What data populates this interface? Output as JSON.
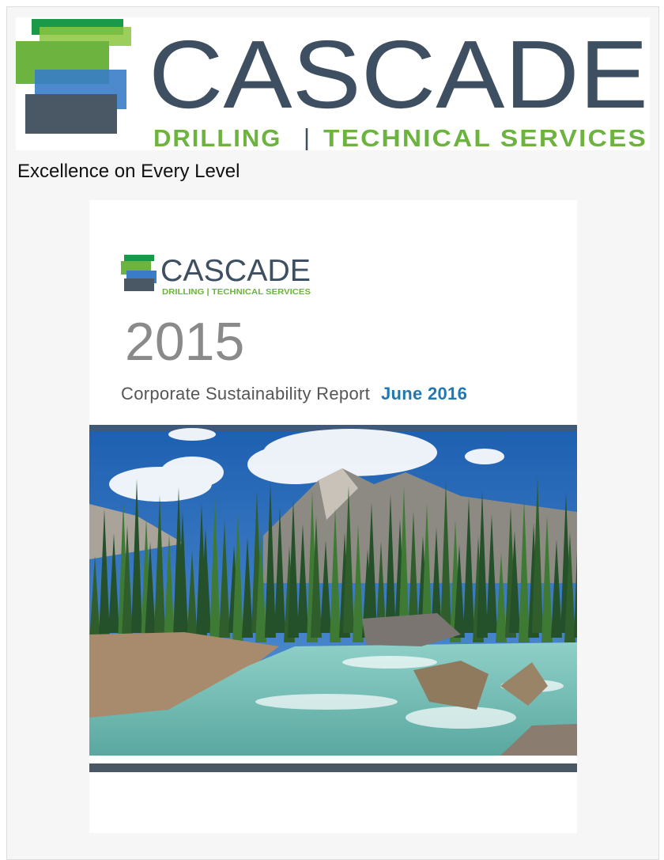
{
  "header": {
    "logo_name": "CASCADE",
    "logo_division": "DRILLING",
    "logo_separator": "|",
    "logo_services": "TECHNICAL SERVICES",
    "tagline": "Excellence on Every Level"
  },
  "cover": {
    "logo_name": "CASCADE",
    "logo_subtitle": "DRILLING | TECHNICAL SERVICES",
    "year": "2015",
    "report_title": "Corporate Sustainability Report",
    "report_date": "June 2016"
  }
}
